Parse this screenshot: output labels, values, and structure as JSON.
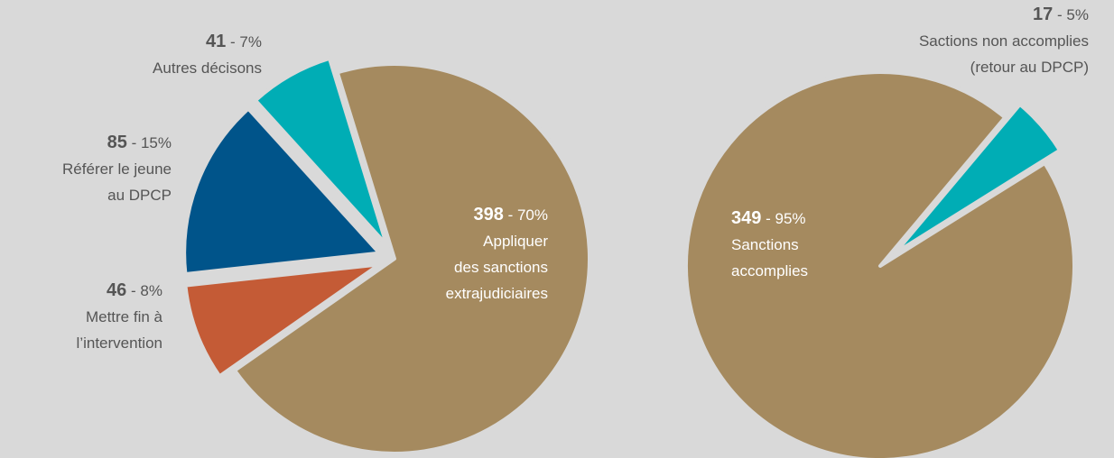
{
  "chart_data": [
    {
      "type": "pie",
      "categories": [
        [
          "Appliquer",
          "des sanctions",
          "extrajudiciaires"
        ],
        [
          "Mettre fin à",
          "l’intervention"
        ],
        [
          "Référer le jeune",
          "au DPCP"
        ],
        [
          "Autres décisons"
        ]
      ],
      "counts": [
        398,
        46,
        85,
        41
      ],
      "values": [
        70,
        8,
        15,
        7
      ],
      "value_labels": [
        "- 70%",
        "- 8%",
        "- 15%",
        "- 7%"
      ],
      "colors": [
        "#a58a5f",
        "#c45b36",
        "#00548a",
        "#00adb5"
      ]
    },
    {
      "type": "pie",
      "categories": [
        [
          "Sanctions",
          "accomplies"
        ],
        [
          "Sactions non accomplies",
          "(retour au DPCP)"
        ]
      ],
      "counts": [
        349,
        17
      ],
      "values": [
        95,
        5
      ],
      "value_labels": [
        "- 95%",
        "- 5%"
      ],
      "colors": [
        "#a58a5f",
        "#00adb5"
      ]
    }
  ]
}
